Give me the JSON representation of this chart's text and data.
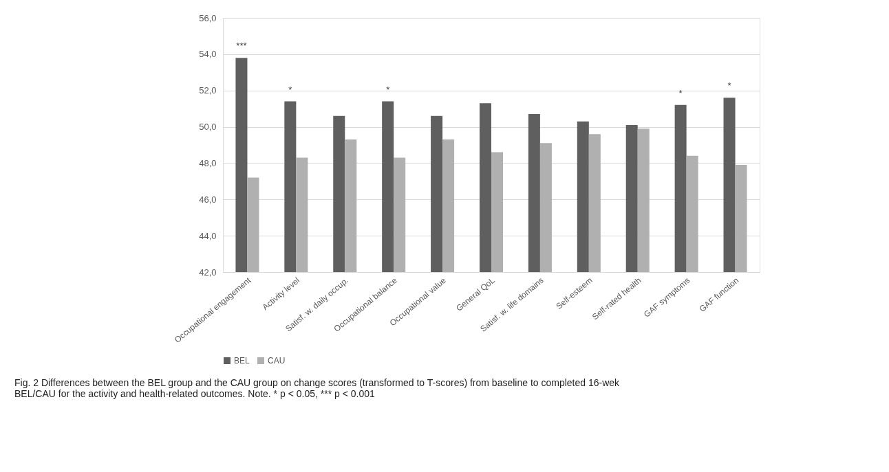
{
  "chart_data": {
    "type": "bar",
    "categories": [
      "Occupational engagement",
      "Activity level",
      "Satisf. w. daily occup.",
      "Occupational balance",
      "Occupational value",
      "General QoL",
      "Satisf. w. life domains",
      "Self-esteem",
      "Self-rated health",
      "GAF symptoms",
      "GAF function"
    ],
    "series": [
      {
        "name": "BEL",
        "color": "#5f5f5f",
        "values": [
          53.8,
          51.4,
          50.6,
          51.4,
          50.6,
          51.3,
          50.7,
          50.3,
          50.1,
          51.2,
          51.6
        ]
      },
      {
        "name": "CAU",
        "color": "#b0b0b0",
        "values": [
          47.2,
          48.3,
          49.3,
          48.3,
          49.3,
          48.6,
          49.1,
          49.6,
          49.9,
          48.4,
          47.9
        ]
      }
    ],
    "ylim": [
      42,
      56
    ],
    "yticks": [
      {
        "value": 42,
        "label": "42,0"
      },
      {
        "value": 44,
        "label": "44,0"
      },
      {
        "value": 46,
        "label": "46,0"
      },
      {
        "value": 48,
        "label": "48,0"
      },
      {
        "value": 50,
        "label": "50,0"
      },
      {
        "value": 52,
        "label": "52,0"
      },
      {
        "value": 54,
        "label": "54,0"
      },
      {
        "value": 56,
        "label": "56,0"
      }
    ],
    "grid": "y",
    "legend": "bottom",
    "annotations": [
      {
        "text": "***",
        "x": "Occupational engagement",
        "y": 53.8
      },
      {
        "text": "*",
        "x": "Activity level",
        "y": 51.4
      },
      {
        "text": "*",
        "x": "Occupational balance",
        "y": 51.4
      },
      {
        "text": "*",
        "x": "GAF symptoms",
        "y": 51.2
      },
      {
        "text": "*",
        "x": "GAF function",
        "y": 51.6
      },
      "Fig. 2 Differences between the BEL group and the CAU group on change scores (transformed to T-scores) from baseline to completed 16-wek BEL/CAU for the activity and health-related outcomes. Note. * p < 0.05, *** p < 0.001"
    ]
  }
}
